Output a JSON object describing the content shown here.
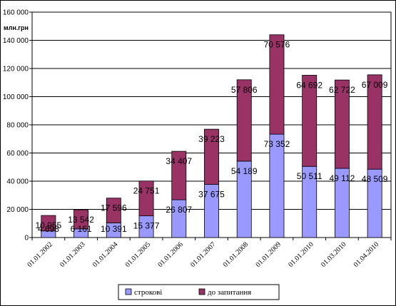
{
  "chart_data": {
    "type": "bar",
    "stacked": true,
    "unit_label": "млн.грн",
    "categories": [
      "01.01.2002",
      "01.01.2003",
      "01.01.2004",
      "01.01.2005",
      "01.01.2006",
      "01.01.2007",
      "01.01.2008",
      "01.01.2009",
      "01.01.2010",
      "01.03.2010",
      "01.04.2010"
    ],
    "series": [
      {
        "name": "строкові",
        "color": "#9999ff",
        "values": [
          4698,
          6161,
          10391,
          15377,
          26807,
          37675,
          54189,
          73352,
          50511,
          49112,
          48509
        ],
        "labels": [
          "4 698",
          "6 161",
          "10 391",
          "15 377",
          "26 807",
          "37 675",
          "54 189",
          "73 352",
          "50 511",
          "49 112",
          "48 509"
        ]
      },
      {
        "name": "до запитання",
        "color": "#993366",
        "values": [
          10955,
          13542,
          17596,
          24751,
          34407,
          39223,
          57806,
          70576,
          64692,
          62722,
          67009
        ],
        "labels": [
          "10 955",
          "13 542",
          "17 596",
          "24 751",
          "34 407",
          "39 223",
          "57 806",
          "70 576",
          "64 692",
          "62 722",
          "67 009"
        ]
      }
    ],
    "ylim": [
      0,
      160000
    ],
    "yticks": [
      0,
      20000,
      40000,
      60000,
      80000,
      100000,
      120000,
      140000,
      160000
    ],
    "ytick_labels": [
      "0",
      "20 000",
      "40 000",
      "60 000",
      "80 000",
      "100 000",
      "120 000",
      "140 000",
      "160 000"
    ],
    "grid": true,
    "legend_position": "bottom"
  }
}
